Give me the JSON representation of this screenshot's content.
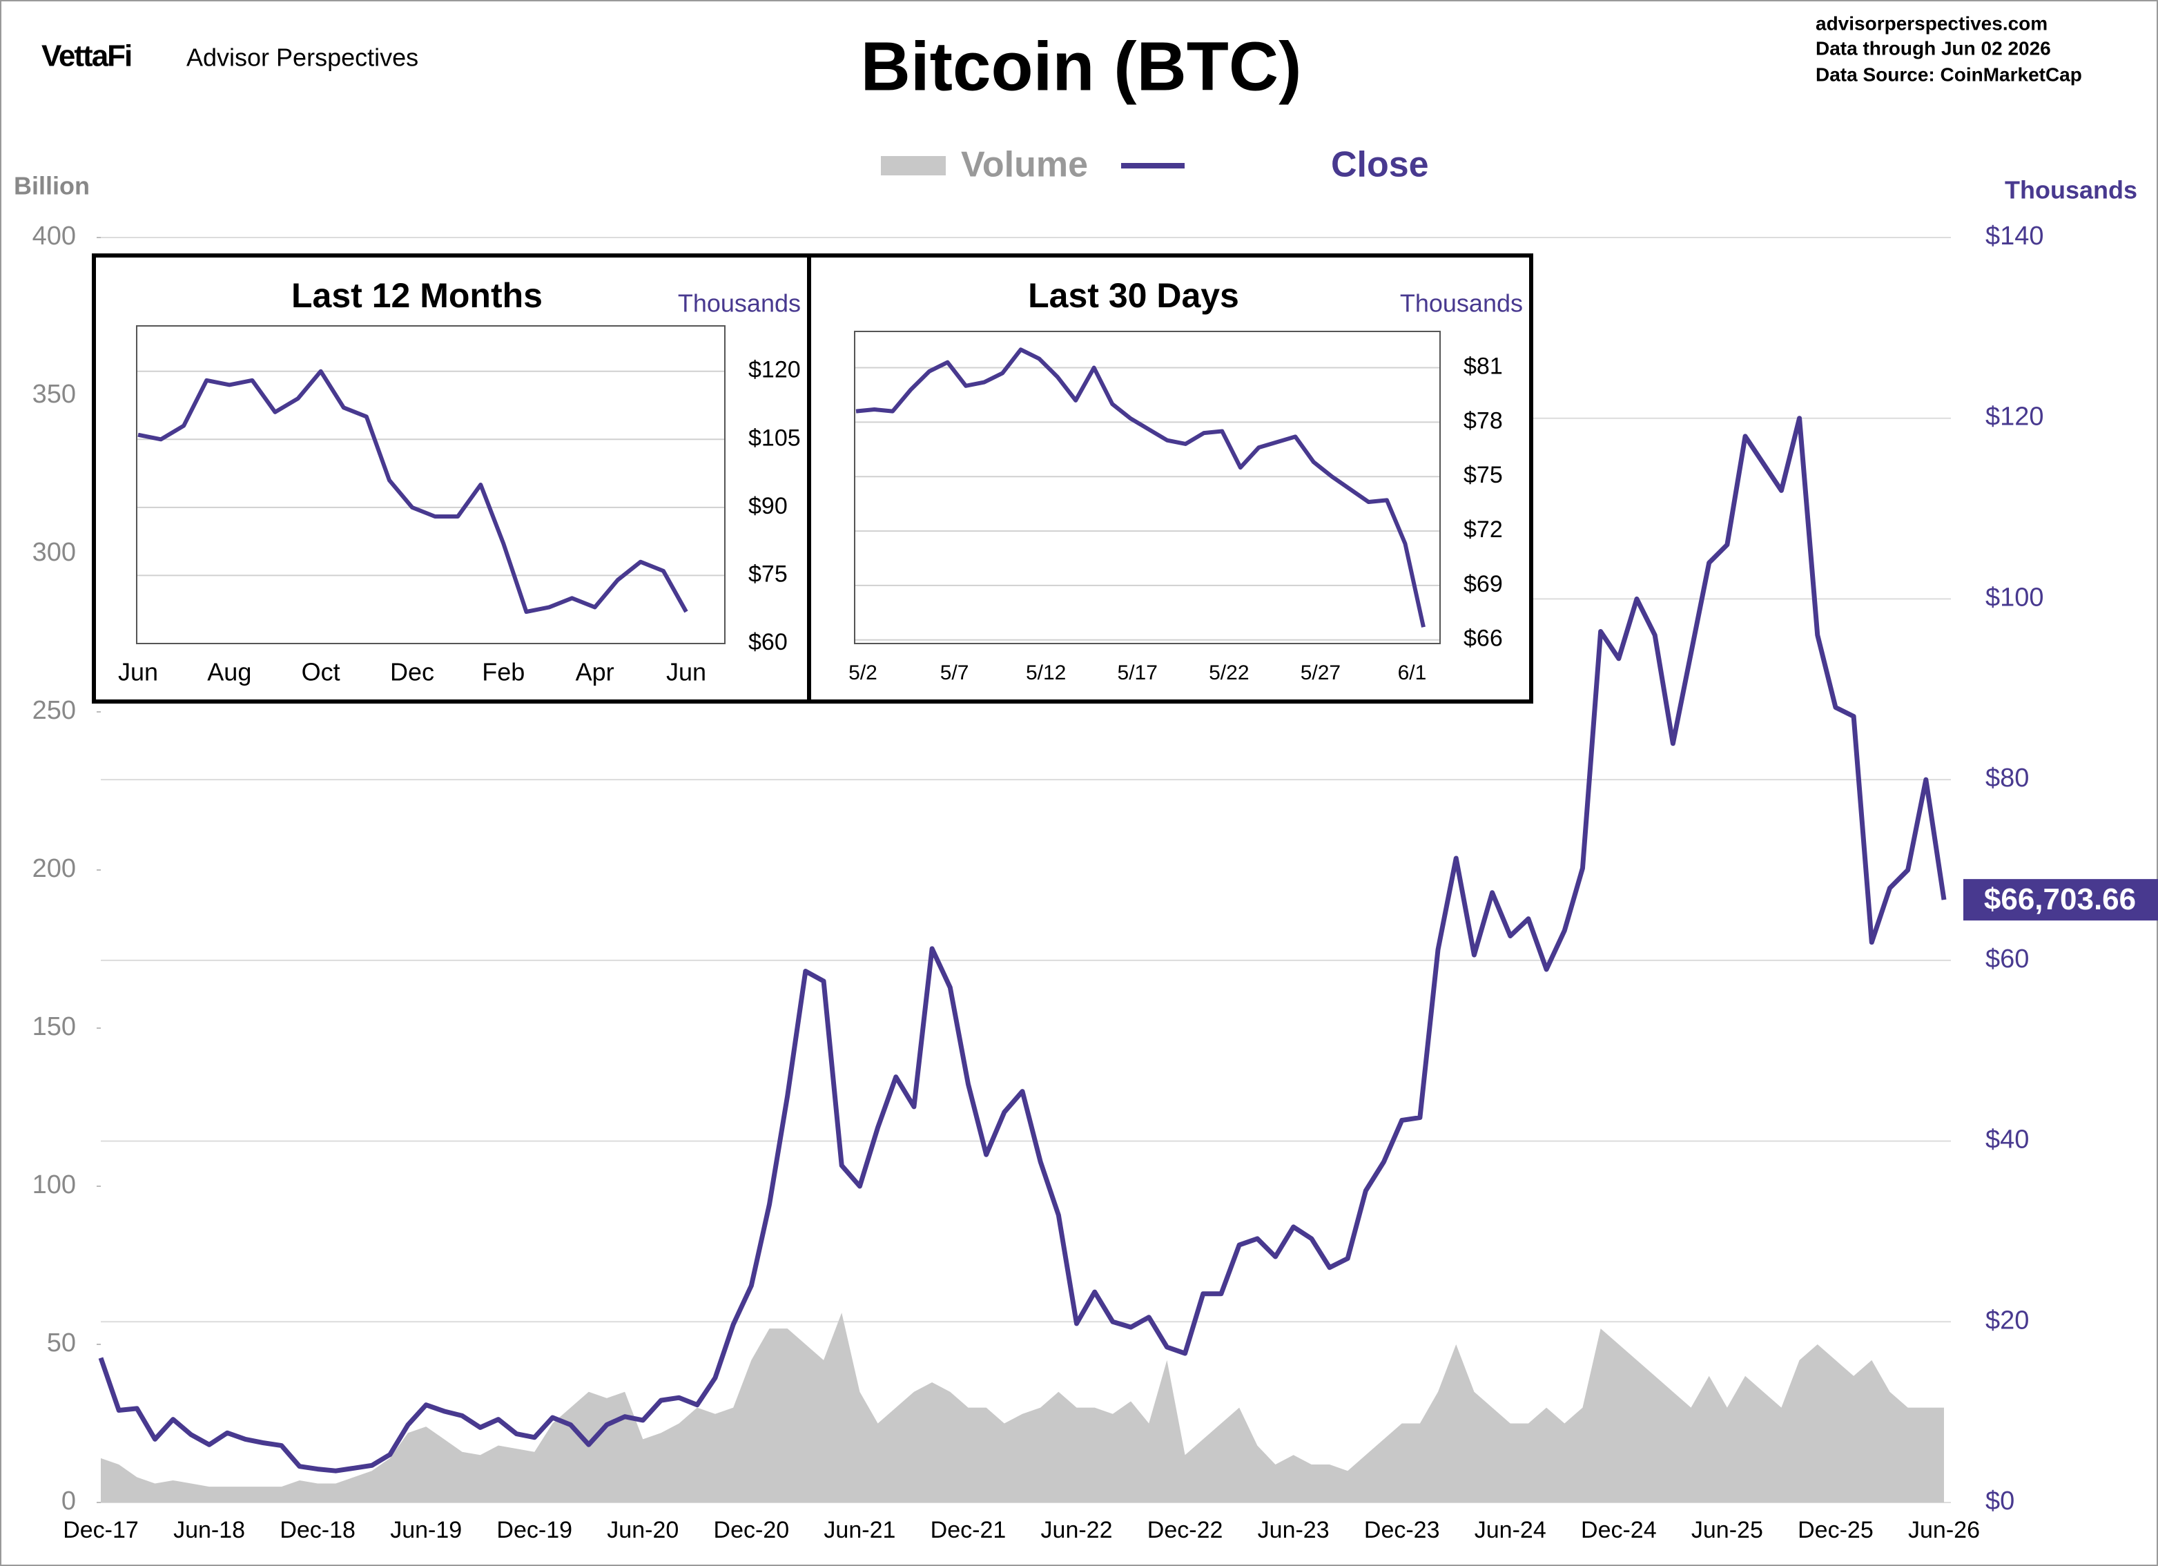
{
  "header": {
    "logo": "VettaFi",
    "brand": "Advisor Perspectives",
    "source_lines": [
      "advisorperspectives.com",
      "Data through  Jun 02 2026",
      "Data Source:  CoinMarketCap"
    ]
  },
  "chart_data": [
    {
      "type": "line",
      "title": "Bitcoin (BTC)",
      "y_label": "Billion",
      "y2_label": "Thousands",
      "categories": [
        "Dec-17",
        null,
        null,
        null,
        null,
        null,
        "Jun-18",
        null,
        null,
        null,
        null,
        null,
        "Dec-18",
        null,
        null,
        null,
        null,
        null,
        "Jun-19",
        null,
        null,
        null,
        null,
        null,
        "Dec-19",
        null,
        null,
        null,
        null,
        null,
        "Jun-20",
        null,
        null,
        null,
        null,
        null,
        "Dec-20",
        null,
        null,
        null,
        null,
        null,
        "Jun-21",
        null,
        null,
        null,
        null,
        null,
        "Dec-21",
        null,
        null,
        null,
        null,
        null,
        "Jun-22",
        null,
        null,
        null,
        null,
        null,
        "Dec-22",
        null,
        null,
        null,
        null,
        null,
        "Jun-23",
        null,
        null,
        null,
        null,
        null,
        "Dec-23",
        null,
        null,
        null,
        null,
        null,
        "Jun-24",
        null,
        null,
        null,
        null,
        null,
        "Dec-24",
        null,
        null,
        null,
        null,
        null,
        "Jun-25",
        null,
        null,
        null,
        null,
        null,
        "Dec-25",
        null,
        null,
        null,
        null,
        null,
        "Jun-26"
      ],
      "series": [
        {
          "name": "Volume",
          "type": "area",
          "color": "#c8c8c8",
          "values": [
            14,
            12,
            8,
            6,
            7,
            6,
            5,
            5,
            5,
            5,
            5,
            7,
            6,
            6,
            8,
            10,
            14,
            22,
            24,
            20,
            16,
            15,
            18,
            17,
            16,
            25,
            30,
            35,
            33,
            35,
            20,
            22,
            25,
            30,
            28,
            30,
            45,
            55,
            55,
            50,
            45,
            60,
            35,
            25,
            30,
            35,
            38,
            35,
            30,
            30,
            25,
            28,
            30,
            35,
            30,
            30,
            28,
            32,
            25,
            45,
            15,
            20,
            25,
            30,
            18,
            12,
            15,
            12,
            12,
            10,
            15,
            20,
            25,
            25,
            35,
            50,
            35,
            30,
            25,
            25,
            30,
            25,
            30,
            55,
            50,
            45,
            40,
            35,
            30,
            40,
            30,
            40,
            35,
            30,
            45,
            50,
            45,
            40,
            45,
            35,
            30,
            30,
            30
          ]
        },
        {
          "name": "Close",
          "type": "line",
          "axis": "y2",
          "color": "#48398f",
          "values": [
            16,
            10.2,
            10.4,
            7,
            9.2,
            7.5,
            6.4,
            7.7,
            7,
            6.6,
            6.3,
            4,
            3.7,
            3.5,
            3.8,
            4.1,
            5.3,
            8.6,
            10.8,
            10.1,
            9.6,
            8.3,
            9.2,
            7.6,
            7.2,
            9.4,
            8.6,
            6.4,
            8.6,
            9.5,
            9.1,
            11.3,
            11.6,
            10.8,
            13.8,
            19.7,
            24,
            33,
            45,
            58.8,
            57.7,
            37.3,
            35,
            41.5,
            47.1,
            43.8,
            61.3,
            57,
            46.3,
            38.5,
            43.2,
            45.5,
            37.7,
            31.8,
            19.8,
            23.3,
            20,
            19.4,
            20.5,
            17.2,
            16.5,
            23.1,
            23.1,
            28.5,
            29.2,
            27.2,
            30.5,
            29.2,
            26,
            27,
            34.5,
            37.7,
            42.3,
            42.6,
            61.2,
            71.3,
            60.6,
            67.5,
            62.7,
            64.6,
            59,
            63.3,
            70.2,
            96.4,
            93.4,
            100,
            96,
            84,
            94,
            104,
            106,
            118,
            115,
            112,
            120,
            96,
            88,
            87,
            62,
            68,
            70,
            80,
            66.70366
          ],
          "value_labels": [
            null,
            null,
            null,
            null,
            null,
            null,
            null,
            null,
            null,
            null,
            null,
            null,
            null,
            null,
            null,
            null,
            null,
            null,
            null,
            null,
            null,
            null,
            null,
            null,
            null,
            null,
            null,
            null,
            null,
            null,
            null,
            null,
            null,
            null,
            null,
            null,
            null,
            null,
            null,
            null,
            null,
            null,
            null,
            null,
            null,
            null,
            null,
            null,
            null,
            null,
            null,
            null,
            null,
            null,
            null,
            null,
            null,
            null,
            null,
            null,
            null,
            null,
            null,
            null,
            null,
            null,
            null,
            null,
            null,
            null,
            null,
            null,
            null,
            null,
            null,
            null,
            null,
            null,
            null,
            null,
            null,
            null,
            null,
            null,
            null,
            null,
            null,
            null,
            null,
            null,
            null,
            null,
            null,
            null,
            null,
            null,
            null,
            null,
            null,
            null,
            null,
            null,
            "$66,703.66"
          ]
        }
      ],
      "ylim": [
        0,
        400
      ],
      "yticks": [
        0,
        50,
        100,
        150,
        200,
        250,
        300,
        350,
        400
      ],
      "y2lim": [
        0,
        140
      ],
      "y2ticks": [
        {
          "value": 0,
          "label": "$0"
        },
        {
          "value": 20,
          "label": "$20"
        },
        {
          "value": 40,
          "label": "$40"
        },
        {
          "value": 60,
          "label": "$60"
        },
        {
          "value": 80,
          "label": "$80"
        },
        {
          "value": 100,
          "label": "$100"
        },
        {
          "value": 120,
          "label": "$120"
        },
        {
          "value": 140,
          "label": "$140"
        }
      ],
      "grid": true
    },
    {
      "type": "line",
      "title": "Last 12 Months",
      "y_label": "Thousands",
      "color": "#48398f",
      "categories": [
        "Jun",
        null,
        null,
        null,
        "Aug",
        null,
        null,
        null,
        "Oct",
        null,
        null,
        null,
        "Dec",
        null,
        null,
        null,
        "Feb",
        null,
        null,
        null,
        "Apr",
        null,
        null,
        null,
        "Jun"
      ],
      "values": [
        106,
        105,
        108,
        118,
        117,
        118,
        111,
        114,
        120,
        112,
        110,
        96,
        90,
        88,
        88,
        95,
        82,
        67,
        68,
        70,
        68,
        74,
        78,
        76,
        67
      ],
      "ylim": [
        60,
        130
      ],
      "yticks": [
        {
          "value": 60,
          "label": "$60"
        },
        {
          "value": 75,
          "label": "$75"
        },
        {
          "value": 90,
          "label": "$90"
        },
        {
          "value": 105,
          "label": "$105"
        },
        {
          "value": 120,
          "label": "$120"
        }
      ],
      "grid": true
    },
    {
      "type": "line",
      "title": "Last 30 Days",
      "y_label": "Thousands",
      "color": "#48398f",
      "categories": [
        "5/2",
        null,
        null,
        null,
        null,
        "5/7",
        null,
        null,
        null,
        null,
        "5/12",
        null,
        null,
        null,
        null,
        "5/17",
        null,
        null,
        null,
        null,
        "5/22",
        null,
        null,
        null,
        null,
        "5/27",
        null,
        null,
        null,
        null,
        "6/1",
        null
      ],
      "values": [
        78.6,
        78.7,
        78.6,
        79.8,
        80.8,
        81.3,
        80.0,
        80.2,
        80.7,
        82.0,
        81.5,
        80.5,
        79.2,
        81.0,
        79.0,
        78.2,
        77.6,
        77.0,
        76.8,
        77.4,
        77.5,
        75.5,
        76.6,
        76.9,
        77.2,
        75.8,
        75.0,
        74.3,
        73.6,
        73.7,
        71.3,
        66.70366
      ],
      "ylim": [
        65.8,
        83
      ],
      "yticks": [
        {
          "value": 66,
          "label": "$66"
        },
        {
          "value": 69,
          "label": "$69"
        },
        {
          "value": 72,
          "label": "$72"
        },
        {
          "value": 75,
          "label": "$75"
        },
        {
          "value": 78,
          "label": "$78"
        },
        {
          "value": 81,
          "label": "$81"
        }
      ],
      "grid": true
    }
  ]
}
